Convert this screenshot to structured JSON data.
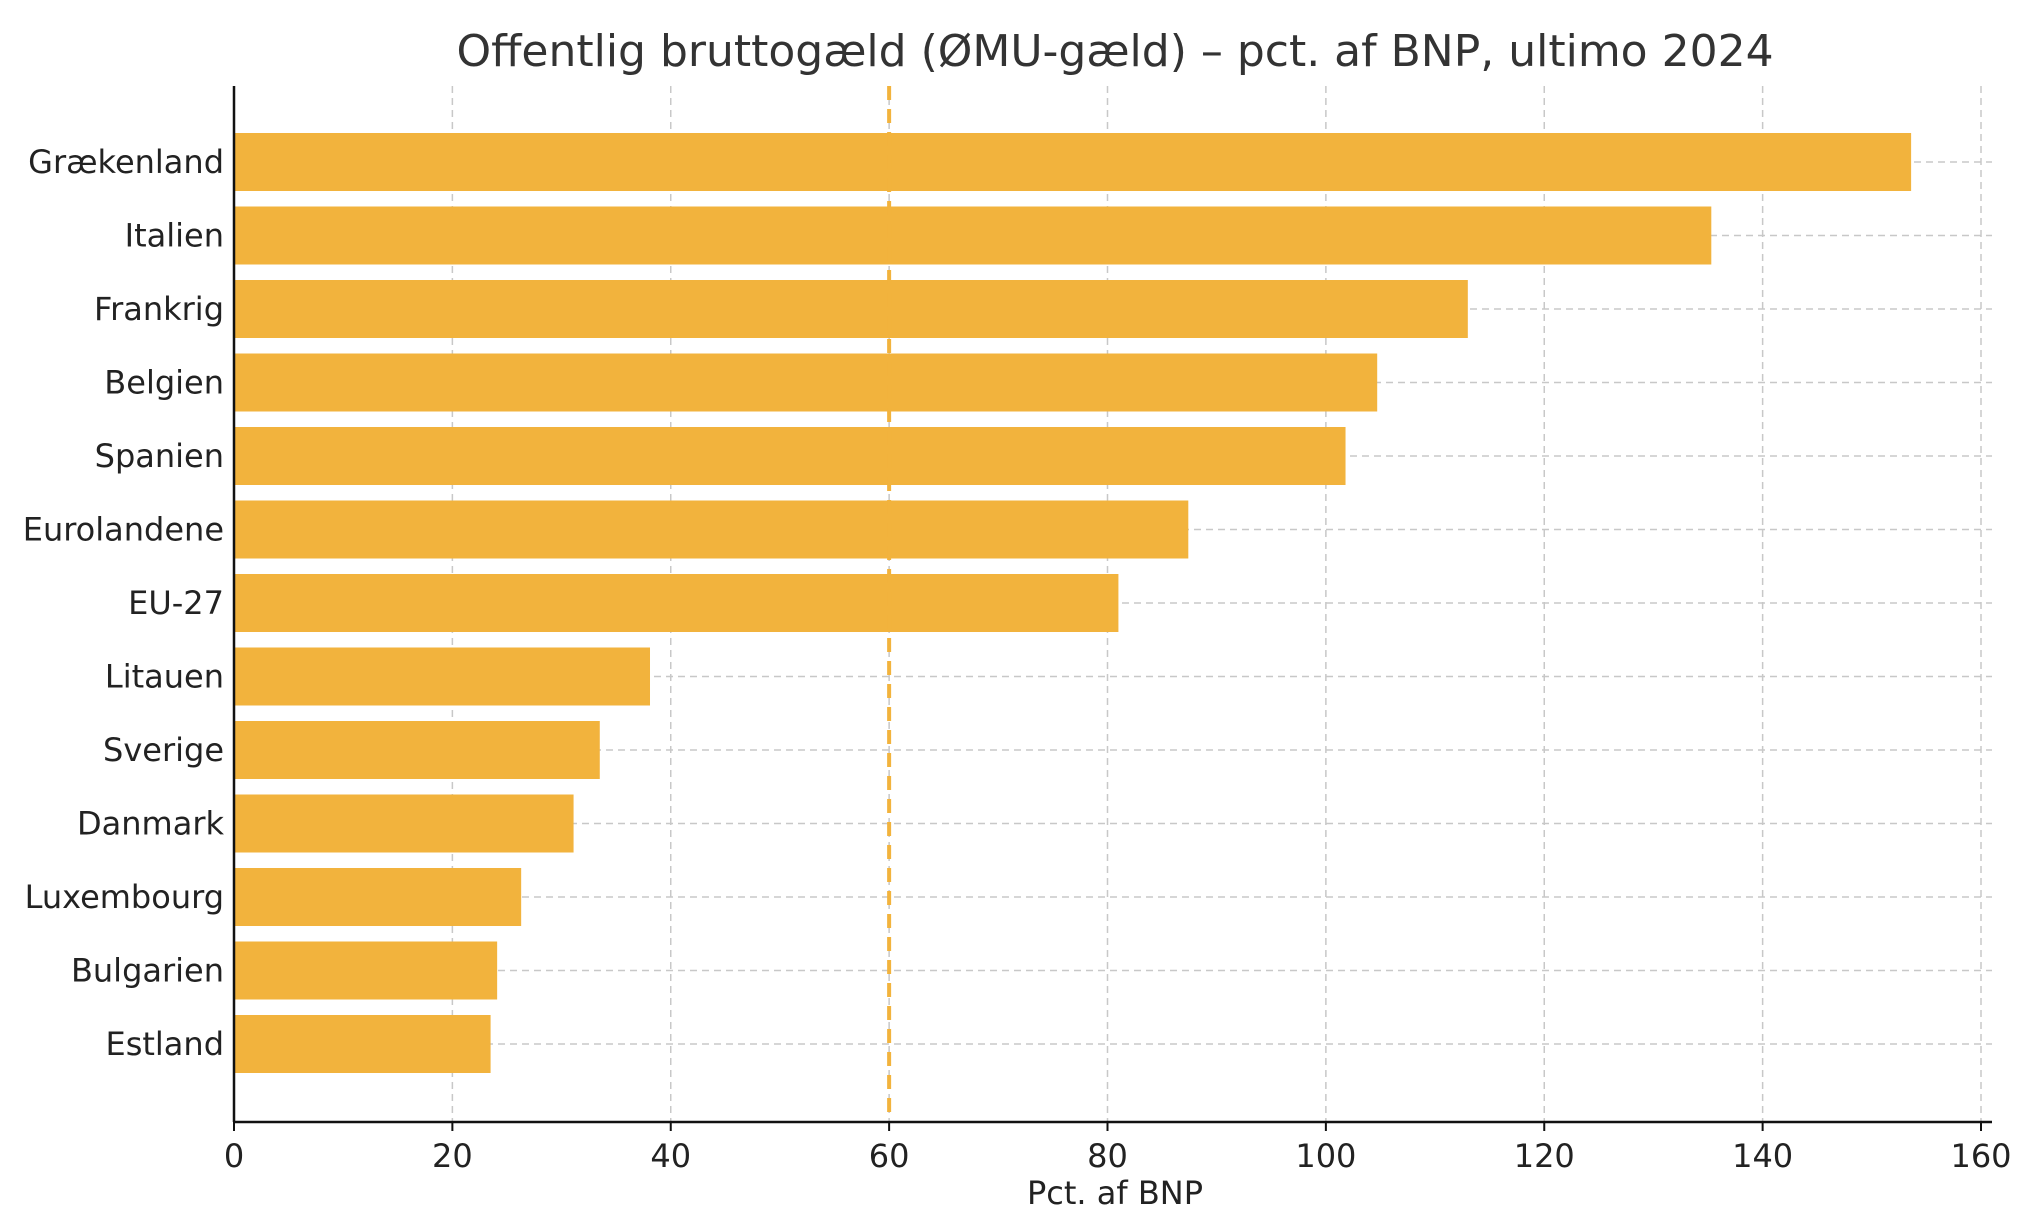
{
  "chart_data": {
    "type": "bar",
    "orientation": "horizontal",
    "title": "Offentlig bruttogæld (ØMU-gæld) – pct. af BNP, ultimo 2024",
    "xlabel": "Pct. af BNP",
    "ylabel": "",
    "categories": [
      "Grækenland",
      "Italien",
      "Frankrig",
      "Belgien",
      "Spanien",
      "Eurolandene",
      "EU-27",
      "Litauen",
      "Sverige",
      "Danmark",
      "Luxembourg",
      "Bulgarien",
      "Estland"
    ],
    "values": [
      153.6,
      135.3,
      113.0,
      104.7,
      101.8,
      87.4,
      81.0,
      38.1,
      33.5,
      31.1,
      26.3,
      24.1,
      23.5
    ],
    "xlim": [
      0,
      160
    ],
    "xticks": [
      0,
      20,
      40,
      60,
      80,
      100,
      120,
      140,
      160
    ],
    "reference_line": {
      "value": 60,
      "style": "dashed"
    },
    "grid": true,
    "colors": {
      "bar": "#F2B33D",
      "reference_line": "#F2B33D",
      "grid": "#c8c8c8",
      "axis": "#111111",
      "text": "#222222",
      "title": "#333333"
    }
  }
}
